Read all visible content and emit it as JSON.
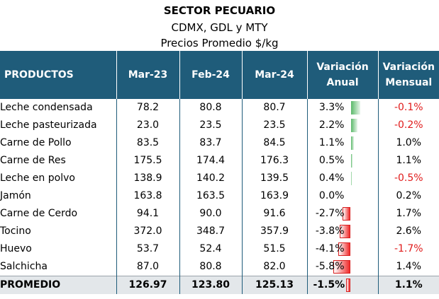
{
  "title": "SECTOR PECUARIO",
  "subtitle1": "CDMX, GDL y MTY",
  "subtitle2": "Precios Promedio $/kg",
  "colors": {
    "header_bg": "#1f5c7a",
    "positive_bar": "#5bb96a",
    "negative_bar": "#ef2b2b",
    "negative_text": "#e01b1b",
    "total_row_bg": "#e3e7ea"
  },
  "headers": {
    "products": "PRODUCTOS",
    "mar23": "Mar-23",
    "feb24": "Feb-24",
    "mar24": "Mar-24",
    "var_anual_1": "Variación",
    "var_anual_2": "Anual",
    "var_mensual_1": "Variación",
    "var_mensual_2": "Mensual"
  },
  "rows": [
    {
      "product": "Leche condensada",
      "mar23": "78.2",
      "feb24": "80.8",
      "mar24": "80.7",
      "var_anual": "3.3%",
      "var_anual_value": 3.3,
      "var_mensual": "-0.1%",
      "mensual_negative": true
    },
    {
      "product": "Leche pasteurizada",
      "mar23": "23.0",
      "feb24": "23.5",
      "mar24": "23.5",
      "var_anual": "2.2%",
      "var_anual_value": 2.2,
      "var_mensual": "-0.2%",
      "mensual_negative": true
    },
    {
      "product": "Carne de Pollo",
      "mar23": "83.5",
      "feb24": "83.7",
      "mar24": "84.5",
      "var_anual": "1.1%",
      "var_anual_value": 1.1,
      "var_mensual": "1.0%",
      "mensual_negative": false
    },
    {
      "product": "Carne de Res",
      "mar23": "175.5",
      "feb24": "174.4",
      "mar24": "176.3",
      "var_anual": "0.5%",
      "var_anual_value": 0.5,
      "var_mensual": "1.1%",
      "mensual_negative": false
    },
    {
      "product": "Leche en polvo",
      "mar23": "138.9",
      "feb24": "140.2",
      "mar24": "139.5",
      "var_anual": "0.4%",
      "var_anual_value": 0.4,
      "var_mensual": "-0.5%",
      "mensual_negative": true
    },
    {
      "product": "Jamón",
      "mar23": "163.8",
      "feb24": "163.5",
      "mar24": "163.9",
      "var_anual": "0.0%",
      "var_anual_value": 0.0,
      "var_mensual": "0.2%",
      "mensual_negative": false
    },
    {
      "product": "Carne de Cerdo",
      "mar23": "94.1",
      "feb24": "90.0",
      "mar24": "91.6",
      "var_anual": "-2.7%",
      "var_anual_value": -2.7,
      "var_mensual": "1.7%",
      "mensual_negative": false
    },
    {
      "product": "Tocino",
      "mar23": "372.0",
      "feb24": "348.7",
      "mar24": "357.9",
      "var_anual": "-3.8%",
      "var_anual_value": -3.8,
      "var_mensual": "2.6%",
      "mensual_negative": false
    },
    {
      "product": "Huevo",
      "mar23": "53.7",
      "feb24": "52.4",
      "mar24": "51.5",
      "var_anual": "-4.1%",
      "var_anual_value": -4.1,
      "var_mensual": "-1.7%",
      "mensual_negative": true
    },
    {
      "product": "Salchicha",
      "mar23": "87.0",
      "feb24": "80.8",
      "mar24": "82.0",
      "var_anual": "-5.8%",
      "var_anual_value": -5.8,
      "var_mensual": "1.4%",
      "mensual_negative": false
    }
  ],
  "total": {
    "product": "PROMEDIO",
    "mar23": "126.97",
    "feb24": "123.80",
    "mar24": "125.13",
    "var_anual": "-1.5%",
    "var_anual_value": -1.5,
    "var_mensual": "1.1%",
    "mensual_negative": false
  }
}
